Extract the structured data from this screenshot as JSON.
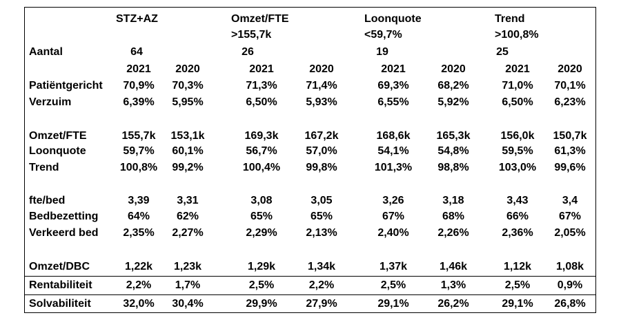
{
  "header": {
    "groups": [
      {
        "title": "STZ+AZ",
        "subtitle": "",
        "count": "64"
      },
      {
        "title": "Omzet/FTE",
        "subtitle": ">155,7k",
        "count": "26"
      },
      {
        "title": "Loonquote",
        "subtitle": "<59,7%",
        "count": "19"
      },
      {
        "title": "Trend",
        "subtitle": ">100,8%",
        "count": "25"
      }
    ],
    "count_label": "Aantal",
    "years": [
      "2021",
      "2020",
      "2021",
      "2020",
      "2021",
      "2020",
      "2021",
      "2020"
    ]
  },
  "rows": [
    {
      "label": "Patiëntgericht",
      "values": [
        "70,9%",
        "70,3%",
        "71,3%",
        "71,4%",
        "69,3%",
        "68,2%",
        "71,0%",
        "70,1%"
      ]
    },
    {
      "label": "Verzuim",
      "values": [
        "6,39%",
        "5,95%",
        "6,50%",
        "5,93%",
        "6,55%",
        "5,92%",
        "6,50%",
        "6,23%"
      ]
    },
    {
      "label": "Omzet/FTE",
      "values": [
        "155,7k",
        "153,1k",
        "169,3k",
        "167,2k",
        "168,6k",
        "165,3k",
        "156,0k",
        "150,7k"
      ]
    },
    {
      "label": "Loonquote",
      "values": [
        "59,7%",
        "60,1%",
        "56,7%",
        "57,0%",
        "54,1%",
        "54,8%",
        "59,5%",
        "61,3%"
      ]
    },
    {
      "label": "Trend",
      "values": [
        "100,8%",
        "99,2%",
        "100,4%",
        "99,8%",
        "101,3%",
        "98,8%",
        "103,0%",
        "99,6%"
      ]
    },
    {
      "label": "fte/bed",
      "values": [
        "3,39",
        "3,31",
        "3,08",
        "3,05",
        "3,26",
        "3,18",
        "3,43",
        "3,4"
      ]
    },
    {
      "label": "Bedbezetting",
      "values": [
        "64%",
        "62%",
        "65%",
        "65%",
        "67%",
        "68%",
        "66%",
        "67%"
      ]
    },
    {
      "label": "Verkeerd bed",
      "values": [
        "2,35%",
        "2,27%",
        "2,29%",
        "2,13%",
        "2,40%",
        "2,26%",
        "2,36%",
        "2,05%"
      ]
    },
    {
      "label": "Omzet/DBC",
      "values": [
        "1,22k",
        "1,23k",
        "1,29k",
        "1,34k",
        "1,37k",
        "1,46k",
        "1,12k",
        "1,08k"
      ]
    },
    {
      "label": "Rentabiliteit",
      "values": [
        "2,2%",
        "1,7%",
        "2,5%",
        "2,2%",
        "2,5%",
        "1,3%",
        "2,5%",
        "0,9%"
      ]
    },
    {
      "label": "Solvabiliteit",
      "values": [
        "32,0%",
        "30,4%",
        "29,9%",
        "27,9%",
        "29,1%",
        "26,2%",
        "29,1%",
        "26,8%"
      ]
    }
  ]
}
